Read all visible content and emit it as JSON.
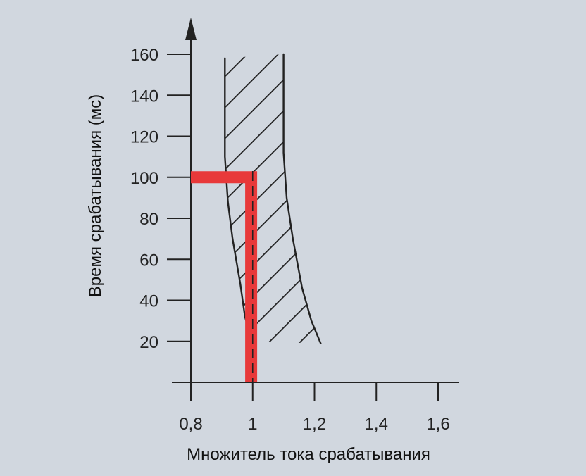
{
  "chart_data": {
    "type": "line",
    "title": "",
    "xlabel": "Множитель тока срабатывания",
    "ylabel": "Время срабатывания (мс)",
    "x_ticks": [
      0.8,
      1.0,
      1.2,
      1.4,
      1.6
    ],
    "x_tick_labels": [
      "0,8",
      "1",
      "1,2",
      "1,4",
      "1,6"
    ],
    "y_ticks": [
      20,
      40,
      60,
      80,
      100,
      120,
      140,
      160
    ],
    "y_tick_labels": [
      "20",
      "40",
      "60",
      "80",
      "100",
      "120",
      "140",
      "160"
    ],
    "xlim": [
      0.745,
      1.66
    ],
    "ylim": [
      0,
      172
    ],
    "grid": false,
    "series": [
      {
        "color": "#e8393a",
        "points": [
          [
            0.8,
            100
          ],
          [
            0.995,
            100
          ],
          [
            0.995,
            0
          ]
        ]
      }
    ],
    "tolerance_band": {
      "left_edge": [
        [
          0.91,
          158
        ],
        [
          0.91,
          110
        ],
        [
          0.92,
          88
        ],
        [
          0.935,
          70
        ],
        [
          0.96,
          48
        ],
        [
          0.975,
          32
        ],
        [
          0.99,
          24
        ],
        [
          1.0,
          20
        ]
      ],
      "right_edge": [
        [
          1.1,
          160
        ],
        [
          1.1,
          112
        ],
        [
          1.11,
          90
        ],
        [
          1.13,
          70
        ],
        [
          1.16,
          46
        ],
        [
          1.19,
          30
        ],
        [
          1.22,
          19
        ]
      ],
      "hatched": true
    },
    "dashed_reference": {
      "x": 1.0,
      "y_from": 103,
      "y_to": 0
    }
  }
}
